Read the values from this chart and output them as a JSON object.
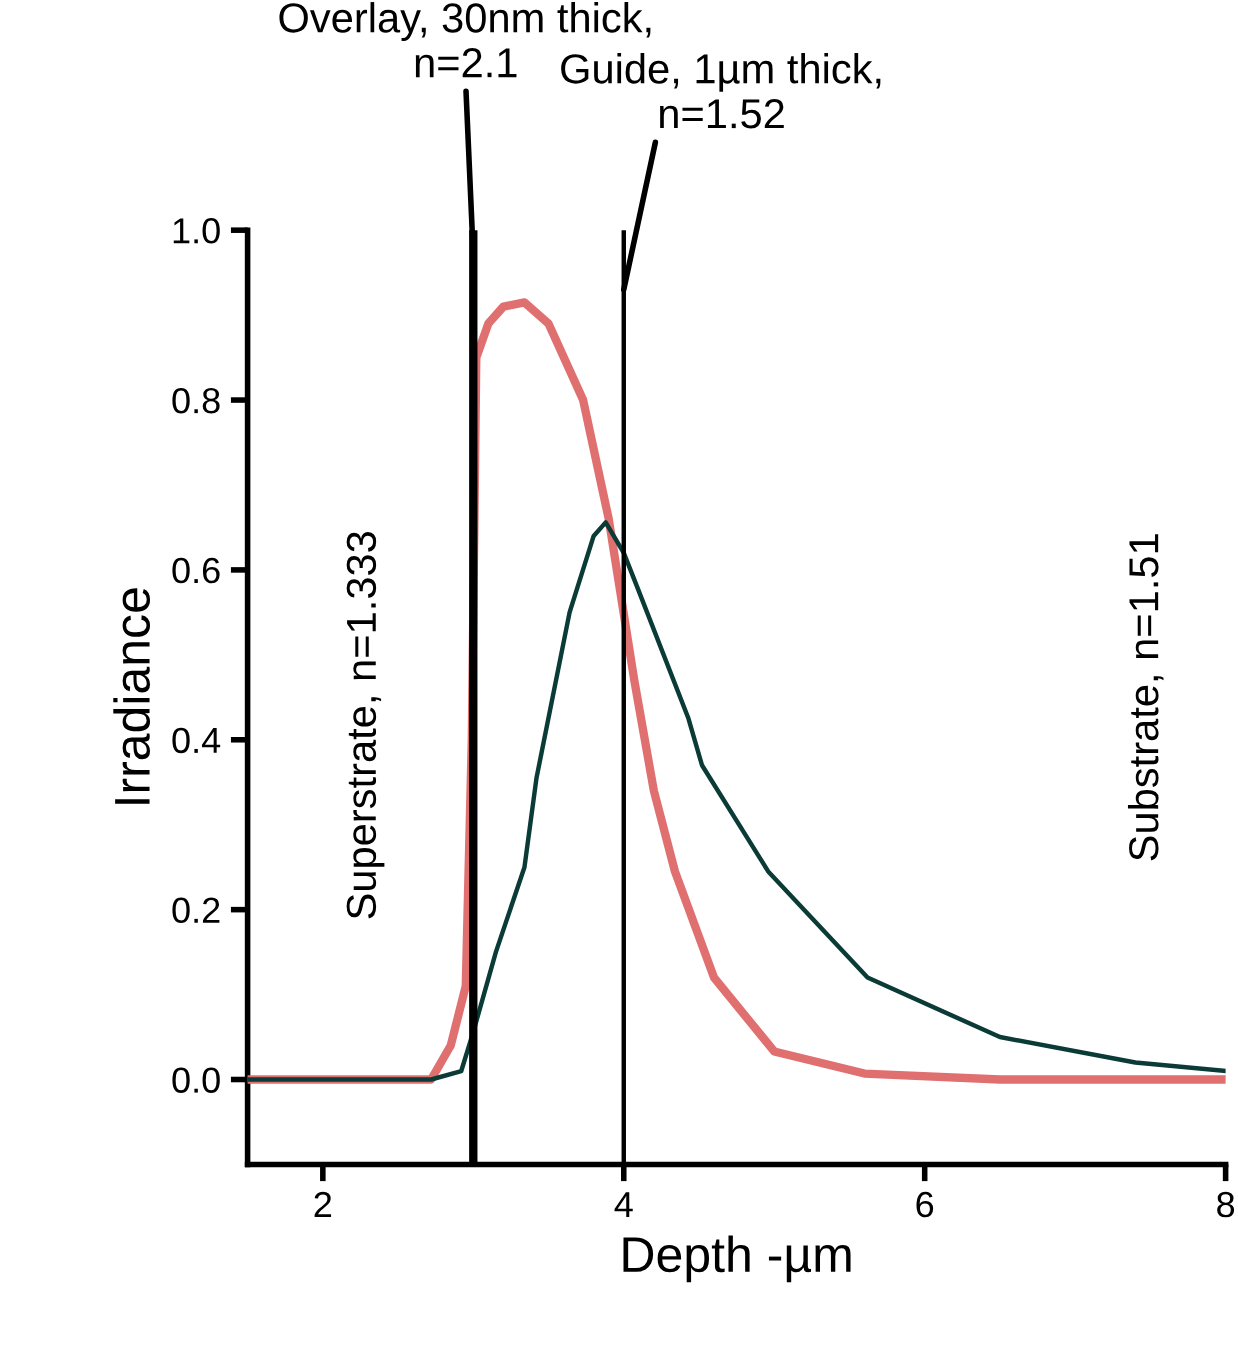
{
  "chart_data": {
    "type": "line",
    "xlabel": "Depth -µm",
    "ylabel": "Irradiance",
    "xlim": [
      1.5,
      8
    ],
    "ylim": [
      -0.1,
      1.0
    ],
    "xticks": [
      2,
      4,
      6,
      8
    ],
    "yticks": [
      {
        "value": 0,
        "label": "0.0"
      },
      0.2,
      0.4,
      0.6,
      0.8,
      {
        "value": 1,
        "label": "1.0"
      }
    ],
    "grid": false,
    "marker": "none",
    "line_style": "solid",
    "series": [
      {
        "color": "#e07070",
        "x": [
          1.5,
          2.5,
          2.72,
          2.85,
          2.95,
          2.99,
          3.02,
          3.1,
          3.2,
          3.34,
          3.5,
          3.73,
          3.9,
          4.07,
          4.2,
          4.34,
          4.6,
          5.0,
          5.6,
          6.5,
          8.0
        ],
        "values": [
          0,
          0,
          0,
          0.04,
          0.11,
          0.4,
          0.85,
          0.89,
          0.91,
          0.915,
          0.89,
          0.8,
          0.66,
          0.47,
          0.34,
          0.245,
          0.12,
          0.033,
          0.007,
          0.0,
          0.0
        ]
      },
      {
        "color": "#0b3b36",
        "x": [
          1.5,
          2.5,
          2.72,
          2.92,
          3.0,
          3.15,
          3.34,
          3.42,
          3.64,
          3.8,
          3.88,
          4.0,
          4.1,
          4.43,
          4.52,
          4.96,
          5.62,
          6.5,
          7.4,
          8.0
        ],
        "values": [
          0,
          0,
          0,
          0.01,
          0.056,
          0.15,
          0.25,
          0.355,
          0.55,
          0.64,
          0.656,
          0.62,
          0.575,
          0.425,
          0.37,
          0.245,
          0.12,
          0.05,
          0.02,
          0.01
        ]
      }
    ],
    "ref_lines": [
      {
        "axis": "x",
        "value": 3,
        "color": "#000000",
        "line_style": "solid"
      },
      {
        "axis": "x",
        "value": 4,
        "color": "#000000",
        "line_style": "solid"
      }
    ],
    "annotations": [
      {
        "text": "Overlay, 30nm thick,\nn=2.1",
        "x": 3,
        "y": 0.97
      },
      {
        "text": "Guide, 1µm thick,\nn=1.52",
        "x": 4,
        "y": 0.93
      },
      "Superstrate, n=1.333",
      "Substrate, n=1.51"
    ]
  }
}
